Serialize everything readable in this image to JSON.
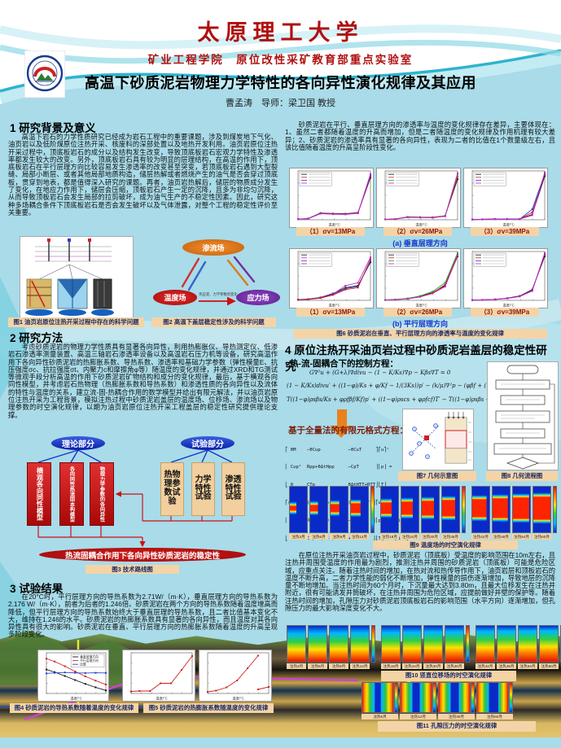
{
  "header": {
    "university": "太原理工大学",
    "subtitle": "矿业工程学院　原位改性采矿教育部重点实验室",
    "title": "高温下砂质泥岩物理力学特性的各向异性演化规律及其应用",
    "authors": "曹孟涛　导师：梁卫国 教授"
  },
  "left": {
    "s1": {
      "heading": "1 研究背景及意义",
      "body": "高温下岩石的力学性质研究已经成为岩石工程中的重要课题，涉及到煤炭地下气化、油页岩以及低阶煤原位注热开采、核废料的深部处置以及地热开发利用。油页岩原位注热开采过程中，顶底板岩石的成分以及结构发生改变，导致顶底板岩石宏观力学特性及渗透率都发生较大的改变。另外，顶底板岩石具有较为明显的层理结构，在高温的作用下，顶底板岩石在平行层理方向比较容易发生渗透率的改变甚至突变，若顶底板岩石遇到大型裂缝、局部小断层、或者其他局部地质构造，储层热解或者燃烧产生的油气是否会穿过顶底板，贯穿到地表，都是值得深入研究的课题。再者，油页岩热解后，储层的物质成分发生了变化，在地应力作用下，储层会压缩，顶板岩石产生一定的沉降，且多为非均匀沉降，从而导致顶板岩石会发生局部的拉剪破坏，成为油气生产的不稳定性因素。因此，研究这种多场耦合条件下顶底板岩石是否会发生破坏以及气体泄露，对整个工程的稳定性评价至关重要。"
    },
    "fig1": {
      "caption": "图1 油页岩原位注热开采过程中存在的科学问题"
    },
    "fig2": {
      "caption": "图2 高温下盖层稳定性涉及的科学问题",
      "nodes": [
        "渗流场",
        "温度场",
        "应力场"
      ],
      "arrow_label": "热应变、力学参数的变化"
    },
    "s2": {
      "heading": "2 研究方法",
      "body": "考虑砂质泥岩的物理力学性质具有显著各向异性，利用热膨胀仪、导热测定仪、低渗岩石渗透率测量装置、高温三轴岩石渗透率设备以及高温岩石压力机等设备，研究高温作用下各向异性砂质泥岩的热膨胀系数、导热系数、渗透率和基础力学参数（弹性模量E、抗压强度σc、抗拉强度σt、内聚力c和摩擦角φ等）随温度的变化规律，并通过XRD和TG测试等微观手段分析高温的作用下砂质泥岩矿物结构和成分的变化规律，最后，基于横观各向同性模型，并考虑岩石热物理（热膨胀系数和导热系数）和渗透性质的各向异性以及流体的特性与温度的关系，建立流-固-热耦合作用的数学模型并给出有限元解法，并以油页岩原位注热开采为工程背景，模拟注热过程中砂质泥岩盖层的温度场、位移场、渗流场以及物理参数的时空演化规律，以期为油页岩原位注热开采工程盖层的稳定性研究提供理论支撑。"
    },
    "fig3": {
      "theory": "理论部分",
      "experiment": "试验部分",
      "model_boxes": [
        "横观各向同性模型",
        "各向同性热流固本构模型",
        "物理力学参数的各向异性"
      ],
      "test_boxes": [
        "热物理参数试验",
        "力学特性试验",
        "渗透特性试验"
      ],
      "conclusion": "热流固耦合作用下各向异性砂质泥岩的稳定性",
      "caption": "图3 技术路线图"
    },
    "s3": {
      "heading": "3 试验结果",
      "body": "在20°C时，平行层理方向的导热系数为2.71W/（m·K），垂直层理方向的导热系数为2.176 W/（m·K），前者为后者的1.246倍。砂质泥岩在两个方向的导热系数随着温度增高而降低，但平行层理方向的导热系数始终大于垂直层理的导热系数，且二者比值基本变化不大，维持在1.246的水平。砂质泥岩的热膨胀系数具有显著的各向异性，而且温度对其各向异性具有很大的影响。砂质泥岩在垂直、平行层理方向的热膨胀系数随着温度的升高呈现多阶段变化。"
    },
    "fig4": {
      "caption": "图4 砂质泥岩的导热系数随着温度的变化规律"
    },
    "fig5": {
      "caption": "图5 砂质泥岩的热膨胀系数随温度的变化规律"
    }
  },
  "right": {
    "intro": "砂质泥岩在平行、垂直层理方向的渗透率与温度的变化规律存在差异，主要体现在：1、虽然二者都随着温度的升高而增加，但是二者随温度的变化规律及作用机理有较大差异；2、砂质泥岩的渗透率具有显著的各向异性，表现为二者的比值在1个数量级左右，且该比值随着温度的升高呈阶段性变化。",
    "fig6": {
      "subcaptions": [
        "（1）σv=13MPa",
        "（2）σv=26MPa",
        "（3）σv=39MPa"
      ],
      "row_labels": [
        "(a) 垂直层理方向",
        "(b) 平行层理方向"
      ],
      "caption": "图6 砂质泥岩在垂直、平行层理方向的渗透率与温度的变化规律"
    },
    "s4": {
      "heading": "4 原位注热开采油页岩过程中砂质泥岩盖层的稳定性研究",
      "sub1": "热-流-固耦合下的控制方程：",
      "equations": [
        "G∇²u + (G+λ)∇divu − (1 − K/Ks)∇p − Kβs∇T = 0",
        "(1 − K/Ks)divu′ + ((1−φ)/Ks + φ/Kf − 1/(3Ks))p′ − (k/μ)∇²p − (φβf + (1−φ)βs)T′ = 0",
        "T((1−φ)ρsβs/Ks + φρfβf/Kf)p′ + ((1−φ)ρscs + φρfcf)T′ − T((1−φ)ρsβs + φρfβf)ε′ + λ∇²T = 0"
      ],
      "sub2": "基于全量法的有限元格式方程：",
      "matrix": [
        "⎡ θM    −θCup          −θCuT     ⎤⎡u⎤ⁿ",
        "⎢ Cupᵀ  Rpp+θΔtHpp     −CpT      ⎥⎢p⎥ =",
        "⎣ 0     CTp            θΔtHTT+RTT⎦⎣T⎦",
        "⎡(θ−1)M (1−θ)Cup       (1−θ)CuT ⎤⎡u⎤ⁿ⁻¹ ⎡ F ⎤",
        "⎢ Cupᵀ  Rpp−(1−θ)ΔtHpp −CpT     ⎥⎢p⎥  + ⎢Δfp⎥",
        "⎣ 0     CTp  (θ−1)ΔtHTT+RTT     ⎦⎣T⎦    ⎣ΔfT⎦"
      ]
    },
    "fig7": {
      "caption": "图7 几何示意图"
    },
    "fig8": {
      "caption": "图8 几何流程图"
    },
    "fig9": {
      "caption": "图9 温度场的时空演化规律",
      "labels": [
        [
          "注热3月",
          "注热6月",
          "注热9月",
          "注热12月"
        ],
        [
          "注热18月",
          "注热24月",
          "注热30月",
          "注热36月"
        ],
        [
          "注热42月",
          "注热48月",
          "注热54月",
          "注热60月"
        ]
      ]
    },
    "body2": "在原位注热开采油页岩过程中，砂质泥岩（顶底板）受温度的影响范围在10m左右，且注热井周围受温度的作用最为剧烈，推测注热井周围的砂质泥岩（顶底板）可能是危险区域，应重点关注。随着注热时间的增加，在热对流和热传导作用下，油页岩层和顶板岩石的温度不断升高，二者力学性能的弱化不断增加，弹性模量的损伤逐渐增加，导致地层的沉降量不断地增加。当注热时间为60个月时，下沉量最大达到3.80m，且最大位移发生在注热井附近，很有可能诱发井筒破坏，在注热井周围为危险区域，应提前做好井壁的保护等。随着注热时间的增加，孔隙压力对砂质泥岩顶底板岩石的影响范围（水平方向）逐渐增加，但孔隙压力的最大影响深度变化不大。",
    "fig10": {
      "caption": "图10 竖直位移场的时空演化规律",
      "labels": [
        [
          "注热3月",
          "注热6月",
          "注热9月",
          "注热12月"
        ],
        [
          "注热18月",
          "注热24月",
          "注热30月",
          "注热36月"
        ],
        [
          "注热42月",
          "注热48月",
          "注热54月",
          "注热60月"
        ]
      ]
    },
    "fig11": {
      "caption": "图11 孔隙压力的时空演化规律",
      "labels": [
        "注热6月",
        "注热12月",
        "注热30月",
        "注热60月"
      ]
    }
  },
  "chart_data": {
    "fig4": {
      "type": "line",
      "xlabel": "温度/°C",
      "legend": "names",
      "x": [
        20,
        100,
        200,
        300,
        400,
        500,
        600
      ],
      "series": [
        {
          "name": "垂直层理方向",
          "color": "#111111",
          "y_range": [
            1,
            3
          ],
          "y": [
            2.176,
            2.05,
            1.86,
            1.66,
            1.47,
            1.3,
            1.15
          ]
        },
        {
          "name": "平行层理方向",
          "color": "#cc2222",
          "y_range": [
            1,
            3
          ],
          "y": [
            2.71,
            2.57,
            2.34,
            2.08,
            1.84,
            1.63,
            1.44
          ]
        },
        {
          "name": "比值",
          "color": "#2244cc",
          "y_range": [
            1.0,
            1.5
          ],
          "y": [
            1.246,
            1.253,
            1.258,
            1.253,
            1.251,
            1.254,
            1.252
          ]
        }
      ]
    },
    "fig5": [
      {
        "type": "line",
        "xlabel": "温度/°C",
        "x": [
          20,
          100,
          200,
          300,
          400,
          500,
          600
        ],
        "y_range": [
          0,
          10
        ],
        "series": [
          {
            "name": "垂直层理",
            "color": "#cc2222",
            "y": [
              0.5,
              0.6,
              0.6,
              2.5,
              2.5,
              5.8,
              9.2
            ]
          }
        ]
      },
      {
        "type": "line",
        "xlabel": "温度/°C",
        "x": [
          20,
          100,
          200,
          300,
          400,
          500,
          600
        ],
        "y_range": [
          0,
          10
        ],
        "series": [
          {
            "name": "平行层理",
            "color": "#cc2222",
            "y": [
              0.4,
              0.7,
              1.5,
              3.2,
              6.2,
              9.3,
              null
            ]
          },
          {
            "name": "平行层理2",
            "color": "#cc2222",
            "y": [
              null,
              null,
              null,
              null,
              null,
              1.0,
              1.6
            ]
          }
        ]
      }
    ],
    "fig6": {
      "type": "line",
      "xlabel": "温度/°C",
      "x": [
        20,
        100,
        200,
        300,
        400,
        500,
        600
      ],
      "rows": [
        {
          "y_range": [
            0,
            6500
          ],
          "charts": [
            {
              "series": [
                {
                  "color": "#111111",
                  "y": [
                    100,
                    160,
                    900,
                    830,
                    800,
                    950,
                    5600
                  ]
                },
                {
                  "color": "#cc2222",
                  "y": [
                    90,
                    150,
                    870,
                    800,
                    770,
                    920,
                    5750
                  ]
                },
                {
                  "color": "#2244cc",
                  "y": [
                    80,
                    140,
                    840,
                    770,
                    740,
                    890,
                    5900
                  ]
                },
                {
                  "color": "#cc22cc",
                  "y": [
                    70,
                    130,
                    810,
                    740,
                    710,
                    860,
                    6100
                  ]
                }
              ]
            },
            {
              "series": [
                {
                  "color": "#111111",
                  "y": [
                    60,
                    100,
                    380,
                    350,
                    330,
                    520,
                    5400
                  ]
                },
                {
                  "color": "#cc2222",
                  "y": [
                    55,
                    95,
                    360,
                    330,
                    310,
                    500,
                    5700
                  ]
                },
                {
                  "color": "#22aa22",
                  "y": [
                    50,
                    90,
                    340,
                    310,
                    290,
                    480,
                    6000
                  ]
                },
                {
                  "color": "#cc22cc",
                  "y": [
                    45,
                    85,
                    320,
                    290,
                    270,
                    460,
                    6200
                  ]
                }
              ]
            },
            {
              "series": [
                {
                  "color": "#111111",
                  "y": [
                    40,
                    60,
                    120,
                    110,
                    100,
                    700,
                    5800
                  ]
                },
                {
                  "color": "#cc2222",
                  "y": [
                    35,
                    55,
                    110,
                    100,
                    95,
                    1000,
                    6000
                  ]
                },
                {
                  "color": "#2244cc",
                  "y": [
                    30,
                    50,
                    100,
                    95,
                    90,
                    1400,
                    6100
                  ]
                },
                {
                  "color": "#cc22cc",
                  "y": [
                    25,
                    45,
                    95,
                    90,
                    85,
                    600,
                    6300
                  ]
                }
              ]
            }
          ]
        },
        {
          "y_range": [
            0,
            100000
          ],
          "charts": [
            {
              "series": [
                {
                  "color": "#111111",
                  "y": [
                    1500,
                    2500,
                    6000,
                    14000,
                    26000,
                    30000,
                    78000
                  ]
                },
                {
                  "color": "#cc22cc",
                  "y": [
                    1300,
                    2200,
                    5500,
                    13000,
                    30000,
                    36000,
                    88000
                  ]
                },
                {
                  "color": "#2244cc",
                  "y": [
                    1200,
                    2000,
                    5000,
                    12000,
                    24000,
                    28000,
                    80000
                  ]
                },
                {
                  "color": "#cc2222",
                  "y": [
                    1000,
                    1800,
                    4500,
                    11000,
                    22000,
                    26000,
                    84000
                  ]
                }
              ]
            },
            {
              "series": [
                {
                  "color": "#111111",
                  "y": [
                    800,
                    1500,
                    3500,
                    8000,
                    16000,
                    30000,
                    90000
                  ]
                },
                {
                  "color": "#cc2222",
                  "y": [
                    700,
                    1300,
                    3200,
                    7500,
                    15000,
                    32000,
                    95000
                  ]
                },
                {
                  "color": "#22aa22",
                  "y": [
                    900,
                    1700,
                    4000,
                    9000,
                    18000,
                    36000,
                    97000
                  ]
                },
                {
                  "color": "#cc22cc",
                  "y": [
                    600,
                    1200,
                    3000,
                    7000,
                    14000,
                    28000,
                    92000
                  ]
                }
              ]
            },
            {
              "series": [
                {
                  "color": "#111111",
                  "y": [
                    500,
                    900,
                    2000,
                    4500,
                    9000,
                    22000,
                    90000
                  ]
                },
                {
                  "color": "#cc2222",
                  "y": [
                    450,
                    850,
                    1900,
                    4300,
                    8600,
                    21000,
                    93000
                  ]
                },
                {
                  "color": "#2244cc",
                  "y": [
                    400,
                    800,
                    1800,
                    4100,
                    8200,
                    20000,
                    95000
                  ]
                },
                {
                  "color": "#cc22cc",
                  "y": [
                    350,
                    750,
                    1700,
                    3900,
                    7800,
                    19000,
                    97000
                  ]
                }
              ]
            }
          ]
        }
      ]
    }
  }
}
